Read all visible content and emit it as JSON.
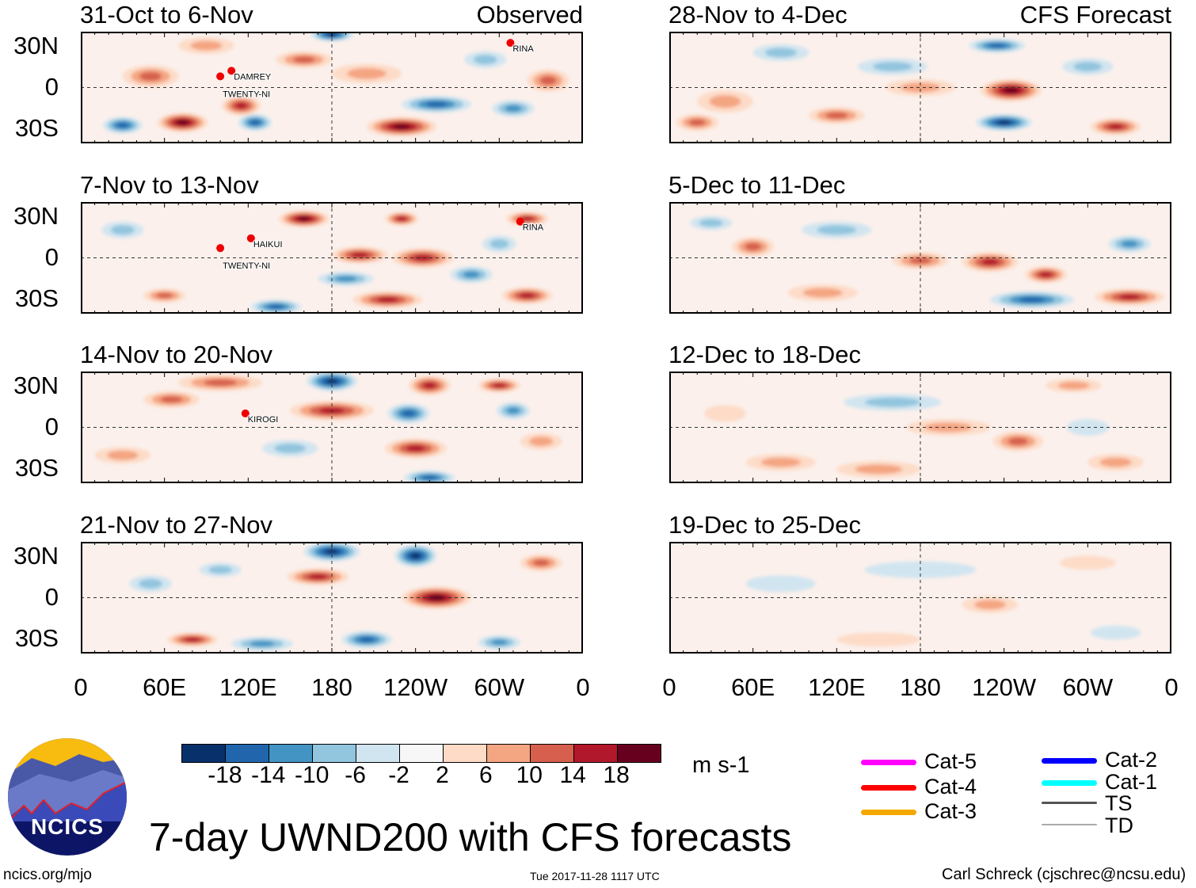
{
  "title": "7-day UWND200 with CFS forecasts",
  "observed_label": "Observed",
  "forecast_label": "CFS Forecast",
  "units": "m s-1",
  "site": "ncics.org/mjo",
  "timestamp": "Tue 2017-11-28 1117 UTC",
  "author": "Carl Schreck (cjschrec@ncsu.edu)",
  "logo_text": "NCICS",
  "y_ticks": [
    "30N",
    "0",
    "30S"
  ],
  "x_ticks": [
    "0",
    "60E",
    "120E",
    "180",
    "120W",
    "60W",
    "0"
  ],
  "colorbar": {
    "colors": [
      "#08306b",
      "#2166ac",
      "#4393c3",
      "#92c5de",
      "#d1e5f0",
      "#f7f7f7",
      "#fddbc7",
      "#f4a582",
      "#d6604d",
      "#b2182b",
      "#67001f"
    ],
    "labels": [
      "-18",
      "-14",
      "-10",
      "-6",
      "-2",
      "2",
      "6",
      "10",
      "14",
      "18"
    ]
  },
  "legend": [
    {
      "label": "Cat-5",
      "color": "#ff00ff"
    },
    {
      "label": "Cat-4",
      "color": "#ff0000"
    },
    {
      "label": "Cat-3",
      "color": "#f5a800"
    },
    {
      "label": "Cat-2",
      "color": "#0000ff"
    },
    {
      "label": "Cat-1",
      "color": "#00ffff"
    },
    {
      "label": "TS",
      "color": "#555555"
    },
    {
      "label": "TD",
      "color": "#aaaaaa"
    }
  ],
  "panels": [
    {
      "period": "31-Oct to 6-Nov",
      "storms": [
        {
          "name": "DAMREY",
          "lon": 108,
          "lat": 12
        },
        {
          "name": "TWENTY-NI",
          "lon": 100,
          "lat": 8
        },
        {
          "name": "RINA",
          "lon": 308,
          "lat": 32
        }
      ],
      "blobs": [
        [
          73,
          -25,
          18,
          7,
          19
        ],
        [
          30,
          -27,
          14,
          6,
          -16
        ],
        [
          125,
          -25,
          12,
          6,
          -14
        ],
        [
          115,
          -13,
          14,
          7,
          15
        ],
        [
          255,
          -12,
          25,
          6,
          -16
        ],
        [
          230,
          -28,
          25,
          7,
          19
        ],
        [
          180,
          38,
          15,
          5,
          -18
        ],
        [
          50,
          8,
          20,
          8,
          11
        ],
        [
          310,
          -15,
          15,
          6,
          -10
        ],
        [
          160,
          20,
          20,
          6,
          10
        ],
        [
          205,
          10,
          25,
          7,
          9
        ],
        [
          335,
          5,
          15,
          8,
          11
        ],
        [
          290,
          20,
          15,
          6,
          -8
        ],
        [
          90,
          30,
          20,
          6,
          8
        ]
      ]
    },
    {
      "period": "7-Nov to 13-Nov",
      "storms": [
        {
          "name": "HAIKUI",
          "lon": 122,
          "lat": 14
        },
        {
          "name": "TWENTY-NI",
          "lon": 100,
          "lat": 7
        },
        {
          "name": "RINA",
          "lon": 315,
          "lat": 26
        }
      ],
      "blobs": [
        [
          160,
          28,
          18,
          6,
          18
        ],
        [
          245,
          0,
          22,
          7,
          17
        ],
        [
          200,
          2,
          20,
          6,
          15
        ],
        [
          230,
          28,
          12,
          5,
          15
        ],
        [
          140,
          -35,
          18,
          5,
          -15
        ],
        [
          220,
          -30,
          25,
          6,
          17
        ],
        [
          320,
          -27,
          18,
          6,
          16
        ],
        [
          60,
          -27,
          15,
          5,
          11
        ],
        [
          320,
          28,
          15,
          5,
          16
        ],
        [
          280,
          -12,
          15,
          6,
          -10
        ],
        [
          190,
          -15,
          20,
          5,
          -10
        ],
        [
          30,
          20,
          15,
          6,
          -8
        ],
        [
          300,
          10,
          12,
          6,
          -8
        ]
      ]
    },
    {
      "period": "14-Nov to 20-Nov",
      "storms": [
        {
          "name": "KIROGI",
          "lon": 118,
          "lat": 10
        }
      ],
      "blobs": [
        [
          180,
          33,
          18,
          7,
          -19
        ],
        [
          180,
          12,
          30,
          7,
          16
        ],
        [
          250,
          30,
          15,
          7,
          17
        ],
        [
          240,
          -15,
          22,
          7,
          17
        ],
        [
          235,
          10,
          15,
          7,
          -14
        ],
        [
          100,
          32,
          30,
          6,
          13
        ],
        [
          300,
          30,
          15,
          5,
          14
        ],
        [
          65,
          20,
          20,
          6,
          10
        ],
        [
          30,
          -20,
          20,
          6,
          9
        ],
        [
          250,
          -36,
          18,
          5,
          -14
        ],
        [
          150,
          -15,
          20,
          6,
          -9
        ],
        [
          330,
          -10,
          15,
          6,
          9
        ],
        [
          310,
          12,
          12,
          6,
          -10
        ]
      ]
    },
    {
      "period": "21-Nov to 27-Nov",
      "storms": [],
      "blobs": [
        [
          180,
          33,
          20,
          7,
          -19
        ],
        [
          240,
          30,
          15,
          8,
          -19
        ],
        [
          170,
          15,
          22,
          6,
          16
        ],
        [
          255,
          0,
          25,
          8,
          18
        ],
        [
          130,
          -33,
          22,
          5,
          -13
        ],
        [
          205,
          -30,
          18,
          6,
          -16
        ],
        [
          300,
          -32,
          15,
          5,
          -13
        ],
        [
          80,
          -30,
          18,
          5,
          14
        ],
        [
          50,
          10,
          15,
          6,
          -9
        ],
        [
          330,
          25,
          15,
          6,
          10
        ],
        [
          100,
          20,
          15,
          5,
          -8
        ]
      ]
    },
    {
      "period": "28-Nov to 4-Dec",
      "storms": [],
      "blobs": [
        [
          245,
          -2,
          22,
          8,
          18
        ],
        [
          240,
          -25,
          20,
          6,
          -18
        ],
        [
          235,
          30,
          20,
          5,
          -16
        ],
        [
          320,
          -28,
          18,
          6,
          14
        ],
        [
          160,
          15,
          25,
          6,
          -9
        ],
        [
          180,
          0,
          25,
          6,
          9
        ],
        [
          80,
          25,
          20,
          6,
          -8
        ],
        [
          40,
          -10,
          20,
          8,
          9
        ],
        [
          120,
          -20,
          20,
          6,
          10
        ],
        [
          300,
          15,
          18,
          6,
          -8
        ],
        [
          20,
          -25,
          15,
          6,
          10
        ]
      ]
    },
    {
      "period": "5-Dec to 11-Dec",
      "storms": [],
      "blobs": [
        [
          230,
          -3,
          20,
          7,
          15
        ],
        [
          270,
          -12,
          15,
          6,
          16
        ],
        [
          260,
          -30,
          30,
          6,
          -17
        ],
        [
          330,
          -28,
          25,
          6,
          16
        ],
        [
          180,
          -2,
          20,
          6,
          12
        ],
        [
          60,
          8,
          15,
          7,
          11
        ],
        [
          330,
          10,
          15,
          6,
          -11
        ],
        [
          120,
          20,
          25,
          6,
          -9
        ],
        [
          110,
          -25,
          25,
          6,
          8
        ],
        [
          30,
          25,
          15,
          5,
          -8
        ]
      ]
    },
    {
      "period": "12-Dec to 18-Dec",
      "storms": [],
      "blobs": [
        [
          250,
          -10,
          18,
          7,
          12
        ],
        [
          200,
          0,
          30,
          6,
          7
        ],
        [
          80,
          -25,
          25,
          6,
          7
        ],
        [
          150,
          -30,
          30,
          6,
          8
        ],
        [
          320,
          -25,
          20,
          6,
          7
        ],
        [
          160,
          18,
          35,
          6,
          -6
        ],
        [
          290,
          30,
          20,
          5,
          8
        ],
        [
          300,
          0,
          15,
          6,
          -5
        ],
        [
          40,
          10,
          15,
          6,
          5
        ]
      ]
    },
    {
      "period": "19-Dec to 25-Dec",
      "storms": [],
      "blobs": [
        [
          230,
          -5,
          20,
          6,
          6
        ],
        [
          150,
          -30,
          30,
          5,
          5
        ],
        [
          180,
          20,
          40,
          6,
          -5
        ],
        [
          80,
          10,
          25,
          6,
          -4
        ],
        [
          300,
          25,
          20,
          5,
          5
        ],
        [
          320,
          -25,
          18,
          5,
          -4
        ]
      ]
    }
  ]
}
